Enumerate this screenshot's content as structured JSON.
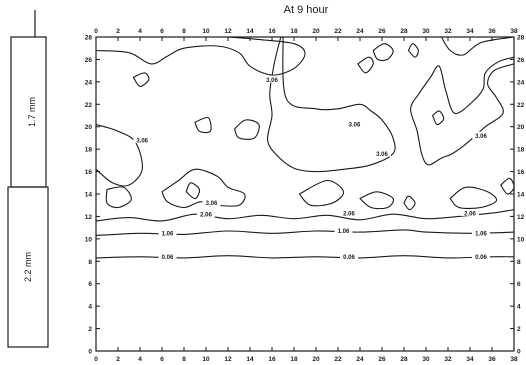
{
  "chart_data": {
    "type": "contour",
    "title": "At  9  hour",
    "xlim": [
      0,
      38
    ],
    "ylim": [
      0,
      28
    ],
    "x_ticks": [
      0,
      2,
      4,
      6,
      8,
      10,
      12,
      14,
      16,
      18,
      20,
      22,
      24,
      26,
      28,
      30,
      32,
      34,
      36,
      38
    ],
    "y_ticks": [
      0,
      2,
      4,
      6,
      8,
      10,
      12,
      14,
      16,
      18,
      20,
      22,
      24,
      26,
      28
    ],
    "contour_levels": [
      {
        "label": "0.06",
        "y": 8.4
      },
      {
        "label": "1.06",
        "y": 10.6
      },
      {
        "label": "2.06",
        "y": 11.8
      },
      {
        "label": "3.06",
        "y": null
      }
    ],
    "contour_label_spots": [
      {
        "text": "0.06",
        "x": 6.5,
        "y": 8.4
      },
      {
        "text": "0.06",
        "x": 23,
        "y": 8.4
      },
      {
        "text": "0.06",
        "x": 35,
        "y": 8.4
      },
      {
        "text": "1.06",
        "x": 6.5,
        "y": 10.5
      },
      {
        "text": "1.06",
        "x": 22.5,
        "y": 10.7
      },
      {
        "text": "1.06",
        "x": 35,
        "y": 10.5
      },
      {
        "text": "2.06",
        "x": 10,
        "y": 12.2
      },
      {
        "text": "2.06",
        "x": 23,
        "y": 12.3
      },
      {
        "text": "2.06",
        "x": 34,
        "y": 12.3
      },
      {
        "text": "3.06",
        "x": 10.5,
        "y": 13.2
      },
      {
        "text": "3.06",
        "x": 16,
        "y": 24.2
      },
      {
        "text": "3.06",
        "x": 4.2,
        "y": 18.8
      },
      {
        "text": "3.06",
        "x": 23.5,
        "y": 20.2
      },
      {
        "text": "3.06",
        "x": 26,
        "y": 17.6
      },
      {
        "text": "3.06",
        "x": 35,
        "y": 19.2
      }
    ],
    "contours": [
      {
        "level": "0.06",
        "points": [
          [
            0,
            8.3
          ],
          [
            4,
            8.4
          ],
          [
            8,
            8.3
          ],
          [
            12,
            8.5
          ],
          [
            16,
            8.3
          ],
          [
            20,
            8.4
          ],
          [
            24,
            8.3
          ],
          [
            28,
            8.5
          ],
          [
            32,
            8.3
          ],
          [
            36,
            8.4
          ],
          [
            38,
            8.4
          ]
        ]
      },
      {
        "level": "1.06",
        "points": [
          [
            0,
            10.3
          ],
          [
            4,
            10.5
          ],
          [
            8,
            10.4
          ],
          [
            12,
            10.7
          ],
          [
            16,
            10.5
          ],
          [
            20,
            10.7
          ],
          [
            24,
            10.6
          ],
          [
            28,
            10.8
          ],
          [
            30,
            10.6
          ],
          [
            34,
            10.5
          ],
          [
            38,
            10.6
          ]
        ]
      },
      {
        "level": "2.06",
        "points": [
          [
            0,
            11.6
          ],
          [
            3,
            11.9
          ],
          [
            6,
            11.6
          ],
          [
            9,
            12.2
          ],
          [
            12,
            11.8
          ],
          [
            15,
            12.1
          ],
          [
            18,
            11.8
          ],
          [
            21,
            12.1
          ],
          [
            24,
            11.7
          ],
          [
            27,
            12.2
          ],
          [
            30,
            11.8
          ],
          [
            33,
            12.0
          ],
          [
            36,
            12.3
          ],
          [
            38,
            12.6
          ]
        ]
      },
      {
        "level": "3.06",
        "points": [
          [
            0,
            26.8
          ],
          [
            3,
            26.6
          ],
          [
            5,
            25.6
          ],
          [
            6.5,
            26.3
          ],
          [
            8,
            27
          ],
          [
            11,
            27.2
          ],
          [
            13,
            26.6
          ],
          [
            14,
            25.4
          ],
          [
            16,
            24.6
          ],
          [
            18,
            25.2
          ],
          [
            19,
            26.5
          ],
          [
            18,
            27.4
          ],
          [
            14.5,
            27.8
          ],
          [
            12,
            28
          ]
        ]
      },
      {
        "level": "3.06",
        "points": [
          [
            0,
            20.2
          ],
          [
            2,
            19.6
          ],
          [
            3.6,
            18.6
          ],
          [
            4.2,
            16.2
          ],
          [
            3,
            14.8
          ],
          [
            1.5,
            15
          ],
          [
            0,
            16.2
          ]
        ]
      },
      {
        "level": "3.06",
        "points": [
          [
            1,
            14.4
          ],
          [
            2.5,
            14.6
          ],
          [
            3.2,
            13.5
          ],
          [
            2,
            12.8
          ],
          [
            1,
            13.2
          ],
          [
            1,
            14.4
          ]
        ]
      },
      {
        "level": "3.06",
        "points": [
          [
            6,
            14.2
          ],
          [
            7.5,
            15.2
          ],
          [
            9,
            16.2
          ],
          [
            11,
            15.6
          ],
          [
            12,
            14.6
          ],
          [
            13.5,
            14
          ],
          [
            13,
            13.0
          ],
          [
            11,
            13.0
          ],
          [
            9.5,
            13.3
          ],
          [
            8,
            12.8
          ],
          [
            6.5,
            13.3
          ],
          [
            6,
            14.2
          ]
        ]
      },
      {
        "level": "3.06",
        "points": [
          [
            8.2,
            14.2
          ],
          [
            8.6,
            15.0
          ],
          [
            9.4,
            14.4
          ],
          [
            9,
            13.6
          ],
          [
            8.2,
            14.2
          ]
        ]
      },
      {
        "level": "3.06",
        "points": [
          [
            9,
            20.4
          ],
          [
            10.2,
            20.8
          ],
          [
            10.4,
            19.6
          ],
          [
            9.4,
            19.6
          ],
          [
            9,
            20.4
          ]
        ]
      },
      {
        "level": "3.06",
        "points": [
          [
            12.6,
            19.8
          ],
          [
            13.6,
            20.6
          ],
          [
            14.8,
            20.2
          ],
          [
            14.4,
            19
          ],
          [
            13,
            19
          ],
          [
            12.6,
            19.8
          ]
        ]
      },
      {
        "level": "3.06",
        "points": [
          [
            18.5,
            14
          ],
          [
            21,
            15.2
          ],
          [
            22.5,
            14.2
          ],
          [
            21.5,
            13.2
          ],
          [
            19.5,
            13.0
          ],
          [
            18.5,
            14
          ]
        ]
      },
      {
        "level": "3.06",
        "points": [
          [
            17,
            28
          ],
          [
            17.3,
            22.5
          ],
          [
            20,
            21.6
          ],
          [
            22,
            21.6
          ],
          [
            24,
            22
          ],
          [
            25,
            21.4
          ],
          [
            26,
            20.6
          ],
          [
            27,
            19.0
          ],
          [
            27,
            17.6
          ],
          [
            25,
            16.6
          ],
          [
            22.5,
            16.2
          ],
          [
            20,
            16.0
          ],
          [
            18,
            16.3
          ],
          [
            16.5,
            17.4
          ],
          [
            15.6,
            18.8
          ],
          [
            16,
            21
          ],
          [
            15.8,
            23
          ],
          [
            16.2,
            25.6
          ],
          [
            16.8,
            28
          ]
        ]
      },
      {
        "level": "3.06",
        "points": [
          [
            24,
            13.6
          ],
          [
            25.5,
            14.2
          ],
          [
            27,
            13.6
          ],
          [
            26.5,
            12.8
          ],
          [
            25,
            12.8
          ],
          [
            24,
            13.6
          ]
        ]
      },
      {
        "level": "3.06",
        "points": [
          [
            28,
            13.2
          ],
          [
            28.4,
            13.8
          ],
          [
            29,
            13.2
          ],
          [
            28.5,
            12.6
          ],
          [
            28,
            13.2
          ]
        ]
      },
      {
        "level": "3.06",
        "points": [
          [
            25.2,
            26.8
          ],
          [
            26.2,
            27.4
          ],
          [
            27,
            26.8
          ],
          [
            26.5,
            26.0
          ],
          [
            25.6,
            26.0
          ],
          [
            25.2,
            26.8
          ]
        ]
      },
      {
        "level": "3.06",
        "points": [
          [
            28.4,
            26.8
          ],
          [
            28.8,
            27.4
          ],
          [
            29.3,
            26.8
          ],
          [
            29,
            26.2
          ],
          [
            28.4,
            26.8
          ]
        ]
      },
      {
        "level": "3.06",
        "points": [
          [
            23.8,
            25.6
          ],
          [
            24.8,
            26.2
          ],
          [
            25.2,
            25.6
          ],
          [
            24.5,
            24.8
          ],
          [
            23.8,
            25.6
          ]
        ]
      },
      {
        "level": "3.06",
        "points": [
          [
            30.6,
            21
          ],
          [
            31.2,
            21.4
          ],
          [
            31.6,
            20.7
          ],
          [
            31,
            20.2
          ],
          [
            30.6,
            21
          ]
        ]
      },
      {
        "level": "3.06",
        "points": [
          [
            38,
            28
          ],
          [
            35,
            27.5
          ],
          [
            33.4,
            26.4
          ],
          [
            32.2,
            26.8
          ],
          [
            31.4,
            28
          ]
        ]
      },
      {
        "level": "3.06",
        "points": [
          [
            38,
            25.6
          ],
          [
            36.2,
            25.0
          ],
          [
            35.6,
            23.8
          ],
          [
            36.4,
            22.6
          ],
          [
            37,
            21.2
          ],
          [
            35.4,
            20
          ],
          [
            33.8,
            18.6
          ],
          [
            32.4,
            17.6
          ],
          [
            31.4,
            17.2
          ],
          [
            30.2,
            16.6
          ],
          [
            29.6,
            17.6
          ],
          [
            29.2,
            19.6
          ],
          [
            28.6,
            21.6
          ],
          [
            29.4,
            23.0
          ],
          [
            30.4,
            24.4
          ],
          [
            31.2,
            25.4
          ],
          [
            31.8,
            23.2
          ],
          [
            32.6,
            21.2
          ],
          [
            34.2,
            22.2
          ],
          [
            35.2,
            23.4
          ],
          [
            35.4,
            24.8
          ],
          [
            36.6,
            25.8
          ],
          [
            38,
            26.2
          ]
        ]
      },
      {
        "level": "3.06",
        "points": [
          [
            32.2,
            13.6
          ],
          [
            33.6,
            14.6
          ],
          [
            35.6,
            14.2
          ],
          [
            36.4,
            13.4
          ],
          [
            35,
            12.8
          ],
          [
            33,
            12.8
          ],
          [
            32.2,
            13.6
          ]
        ]
      },
      {
        "level": "3.06",
        "points": [
          [
            36.8,
            14.8
          ],
          [
            37.6,
            15.4
          ],
          [
            38,
            14.6
          ],
          [
            37.4,
            14
          ],
          [
            36.8,
            14.8
          ]
        ]
      },
      {
        "level": "3.06",
        "points": [
          [
            3.4,
            24.4
          ],
          [
            4.4,
            24.8
          ],
          [
            4.8,
            24.2
          ],
          [
            4,
            23.6
          ],
          [
            3.4,
            24.4
          ]
        ]
      }
    ],
    "xlabel": "",
    "ylabel": "",
    "grid": false,
    "legend": "none"
  },
  "side_panel": {
    "top_label": "1.7  mm",
    "bottom_label": "2.2  mm"
  }
}
